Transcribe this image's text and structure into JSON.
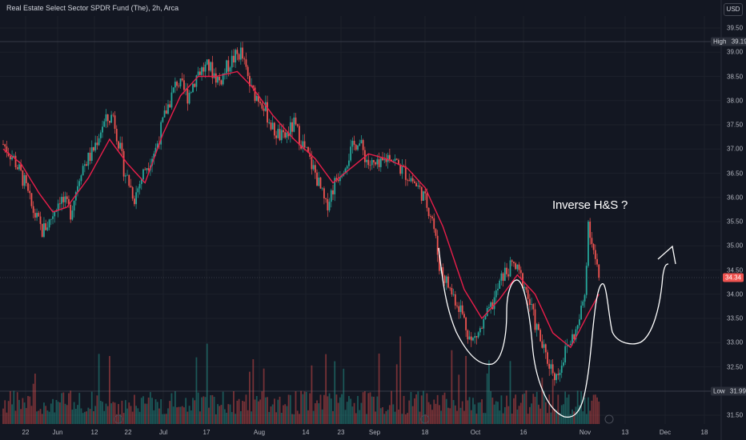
{
  "header": {
    "title": "Real Estate Select Sector SPDR Fund (The), 2h, Arca",
    "currency": "USD"
  },
  "colors": {
    "background": "#131722",
    "up": "#26a69a",
    "down": "#ef5350",
    "ma": "#e91e4a",
    "drawing": "#ffffff",
    "high_line": "#363a45",
    "high_label_bg": "#2a2e39"
  },
  "annotation": {
    "text": "Inverse H&S ?"
  },
  "markers": {
    "high_label": "High",
    "low_label": "Low"
  },
  "chart_data": {
    "type": "candlestick",
    "timeframe": "2h",
    "y_ticks": [
      "39.50",
      "39.00",
      "38.50",
      "38.00",
      "37.50",
      "37.00",
      "36.50",
      "36.00",
      "35.50",
      "35.00",
      "34.50",
      "34.00",
      "33.50",
      "33.00",
      "32.50",
      "32.00",
      "31.50"
    ],
    "x_ticks": [
      "22",
      "Jun",
      "12",
      "22",
      "Jul",
      "17",
      "Aug",
      "14",
      "23",
      "Sep",
      "18",
      "Oct",
      "16",
      "Nov",
      "13",
      "Dec",
      "18"
    ],
    "ylim": [
      31.4,
      39.7
    ],
    "high": 39.19,
    "low": 31.99,
    "last_price": 34.34,
    "price_path": [
      {
        "d": 0,
        "p": 37.1
      },
      {
        "d": 3,
        "p": 36.8
      },
      {
        "d": 6,
        "p": 36.3
      },
      {
        "d": 8,
        "p": 35.8
      },
      {
        "d": 11,
        "p": 35.3
      },
      {
        "d": 13,
        "p": 35.5
      },
      {
        "d": 16,
        "p": 36.0
      },
      {
        "d": 19,
        "p": 35.7
      },
      {
        "d": 22,
        "p": 36.6
      },
      {
        "d": 25,
        "p": 36.9
      },
      {
        "d": 28,
        "p": 37.5
      },
      {
        "d": 31,
        "p": 37.7
      },
      {
        "d": 34,
        "p": 36.6
      },
      {
        "d": 37,
        "p": 36.0
      },
      {
        "d": 40,
        "p": 36.6
      },
      {
        "d": 43,
        "p": 37.0
      },
      {
        "d": 46,
        "p": 37.8
      },
      {
        "d": 49,
        "p": 38.4
      },
      {
        "d": 52,
        "p": 38.1
      },
      {
        "d": 55,
        "p": 38.6
      },
      {
        "d": 58,
        "p": 38.7
      },
      {
        "d": 61,
        "p": 38.4
      },
      {
        "d": 64,
        "p": 38.8
      },
      {
        "d": 67,
        "p": 39.0
      },
      {
        "d": 70,
        "p": 38.2
      },
      {
        "d": 73,
        "p": 38.0
      },
      {
        "d": 76,
        "p": 37.4
      },
      {
        "d": 79,
        "p": 37.2
      },
      {
        "d": 82,
        "p": 37.5
      },
      {
        "d": 85,
        "p": 37.0
      },
      {
        "d": 88,
        "p": 36.5
      },
      {
        "d": 91,
        "p": 35.8
      },
      {
        "d": 94,
        "p": 36.4
      },
      {
        "d": 97,
        "p": 36.8
      },
      {
        "d": 100,
        "p": 37.2
      },
      {
        "d": 103,
        "p": 36.7
      },
      {
        "d": 106,
        "p": 36.6
      },
      {
        "d": 109,
        "p": 36.9
      },
      {
        "d": 112,
        "p": 36.6
      },
      {
        "d": 115,
        "p": 36.4
      },
      {
        "d": 118,
        "p": 36.1
      },
      {
        "d": 121,
        "p": 35.6
      },
      {
        "d": 123,
        "p": 34.6
      },
      {
        "d": 126,
        "p": 34.1
      },
      {
        "d": 129,
        "p": 33.7
      },
      {
        "d": 132,
        "p": 33.0
      },
      {
        "d": 135,
        "p": 33.3
      },
      {
        "d": 138,
        "p": 33.8
      },
      {
        "d": 141,
        "p": 34.4
      },
      {
        "d": 144,
        "p": 34.6
      },
      {
        "d": 147,
        "p": 34.2
      },
      {
        "d": 150,
        "p": 33.4
      },
      {
        "d": 153,
        "p": 32.7
      },
      {
        "d": 156,
        "p": 32.3
      },
      {
        "d": 159,
        "p": 32.9
      },
      {
        "d": 162,
        "p": 33.3
      },
      {
        "d": 164,
        "p": 34.0
      },
      {
        "d": 165,
        "p": 35.5
      },
      {
        "d": 167,
        "p": 34.7
      },
      {
        "d": 168,
        "p": 34.34
      }
    ],
    "ma_path": [
      {
        "d": 0,
        "p": 37.0
      },
      {
        "d": 5,
        "p": 36.7
      },
      {
        "d": 10,
        "p": 36.1
      },
      {
        "d": 14,
        "p": 35.7
      },
      {
        "d": 18,
        "p": 35.8
      },
      {
        "d": 24,
        "p": 36.4
      },
      {
        "d": 30,
        "p": 37.2
      },
      {
        "d": 35,
        "p": 36.7
      },
      {
        "d": 40,
        "p": 36.3
      },
      {
        "d": 45,
        "p": 37.3
      },
      {
        "d": 50,
        "p": 38.1
      },
      {
        "d": 55,
        "p": 38.5
      },
      {
        "d": 60,
        "p": 38.5
      },
      {
        "d": 66,
        "p": 38.6
      },
      {
        "d": 70,
        "p": 38.3
      },
      {
        "d": 76,
        "p": 37.7
      },
      {
        "d": 82,
        "p": 37.2
      },
      {
        "d": 88,
        "p": 36.8
      },
      {
        "d": 93,
        "p": 36.3
      },
      {
        "d": 98,
        "p": 36.6
      },
      {
        "d": 103,
        "p": 36.9
      },
      {
        "d": 108,
        "p": 36.8
      },
      {
        "d": 114,
        "p": 36.6
      },
      {
        "d": 119,
        "p": 36.2
      },
      {
        "d": 124,
        "p": 35.4
      },
      {
        "d": 130,
        "p": 34.1
      },
      {
        "d": 135,
        "p": 33.5
      },
      {
        "d": 140,
        "p": 33.9
      },
      {
        "d": 145,
        "p": 34.4
      },
      {
        "d": 150,
        "p": 34.0
      },
      {
        "d": 155,
        "p": 33.2
      },
      {
        "d": 160,
        "p": 32.9
      },
      {
        "d": 165,
        "p": 33.6
      },
      {
        "d": 168,
        "p": 34.0
      }
    ]
  }
}
